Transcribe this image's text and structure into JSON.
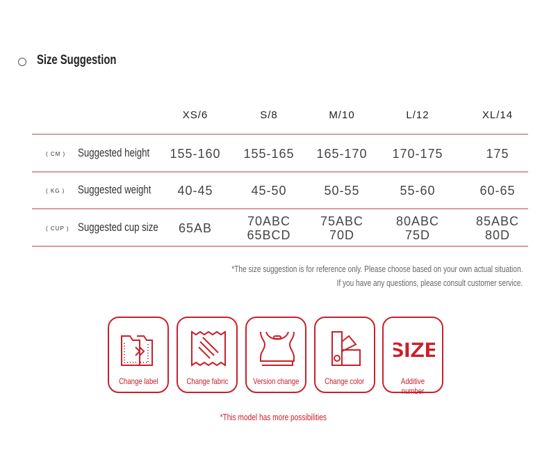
{
  "section": {
    "title": "Size Suggestion"
  },
  "table": {
    "columns": [
      "XS/6",
      "S/8",
      "M/10",
      "L/12",
      "XL/14"
    ],
    "rows": [
      {
        "unit": "( CM )",
        "label": "Suggested height",
        "values": [
          [
            "155-160"
          ],
          [
            "155-165"
          ],
          [
            "165-170"
          ],
          [
            "170-175"
          ],
          [
            "175"
          ]
        ]
      },
      {
        "unit": "( KG )",
        "label": "Suggested weight",
        "values": [
          [
            "40-45"
          ],
          [
            "45-50"
          ],
          [
            "50-55"
          ],
          [
            "55-60"
          ],
          [
            "60-65"
          ]
        ]
      },
      {
        "unit": "( CUP )",
        "label": "Suggested cup size",
        "values": [
          [
            "65AB"
          ],
          [
            "70ABC",
            "65BCD"
          ],
          [
            "75ABC",
            "70D"
          ],
          [
            "80ABC",
            "75D"
          ],
          [
            "85ABC",
            "80D"
          ]
        ]
      }
    ]
  },
  "notes": [
    "*The size suggestion is for reference only. Please choose based on your own actual situation.",
    "If you have any questions, please consult customer service."
  ],
  "services": [
    {
      "icon": "change-label-icon",
      "label": "Change label"
    },
    {
      "icon": "fabric-icon",
      "label": "Change fabric"
    },
    {
      "icon": "sports-bra-icon",
      "label": "Version change"
    },
    {
      "icon": "color-swatch-icon",
      "label": "Change color"
    },
    {
      "icon": "size-text-icon",
      "label": "Additive number",
      "icon_text": "SIZE"
    }
  ],
  "footnote": "*This model has more possibilities",
  "colors": {
    "accent": "#c8202a",
    "divider": "#dc9c9f"
  }
}
